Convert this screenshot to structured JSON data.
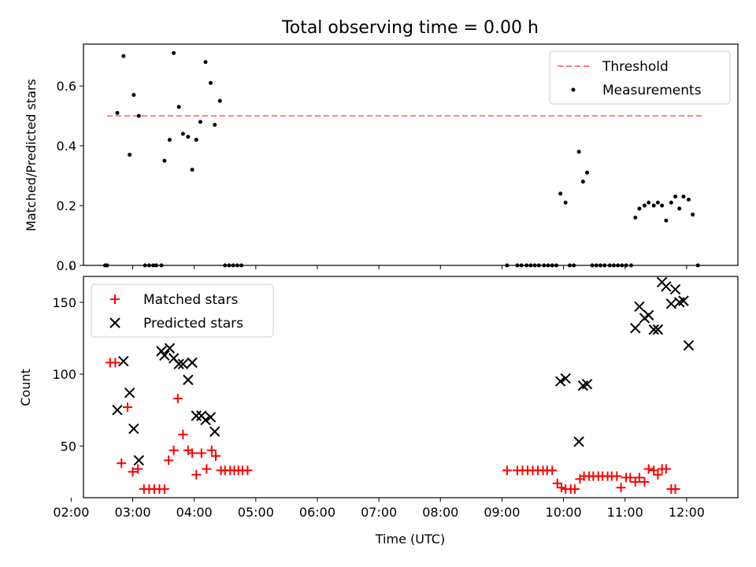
{
  "chart_data": [
    {
      "type": "scatter",
      "title": "Total observing time = 0.00 h",
      "ylabel": "Matched/Predicted stars",
      "xlabel": "",
      "xlim": [
        "02:12",
        "12:50"
      ],
      "ylim": [
        0,
        0.74
      ],
      "yticks": [
        0.0,
        0.2,
        0.4,
        0.6
      ],
      "ytick_labels": [
        "0.0",
        "0.2",
        "0.4",
        "0.6"
      ],
      "legend_position": "upper right",
      "threshold": {
        "name": "Threshold",
        "value": 0.5,
        "x_start": "02:35",
        "x_end": "12:15",
        "color": "#ff7f7f",
        "style": "dashed"
      },
      "series": [
        {
          "name": "Measurements",
          "color": "#000000",
          "marker": "dot",
          "points": [
            [
              "02:33",
              0.0
            ],
            [
              "02:35",
              0.0
            ],
            [
              "02:45",
              0.51
            ],
            [
              "02:51",
              0.7
            ],
            [
              "02:57",
              0.37
            ],
            [
              "03:01",
              0.57
            ],
            [
              "03:06",
              0.5
            ],
            [
              "03:12",
              0.0
            ],
            [
              "03:16",
              0.0
            ],
            [
              "03:20",
              0.0
            ],
            [
              "03:23",
              0.0
            ],
            [
              "03:28",
              0.0
            ],
            [
              "03:31",
              0.35
            ],
            [
              "03:36",
              0.42
            ],
            [
              "03:40",
              0.71
            ],
            [
              "03:45",
              0.53
            ],
            [
              "03:49",
              0.44
            ],
            [
              "03:54",
              0.43
            ],
            [
              "03:58",
              0.32
            ],
            [
              "04:02",
              0.42
            ],
            [
              "04:06",
              0.48
            ],
            [
              "04:11",
              0.68
            ],
            [
              "04:16",
              0.61
            ],
            [
              "04:20",
              0.47
            ],
            [
              "04:25",
              0.55
            ],
            [
              "04:30",
              0.0
            ],
            [
              "04:34",
              0.0
            ],
            [
              "04:38",
              0.0
            ],
            [
              "04:42",
              0.0
            ],
            [
              "04:46",
              0.0
            ],
            [
              "09:05",
              0.0
            ],
            [
              "09:15",
              0.0
            ],
            [
              "09:19",
              0.0
            ],
            [
              "09:24",
              0.0
            ],
            [
              "09:28",
              0.0
            ],
            [
              "09:32",
              0.0
            ],
            [
              "09:36",
              0.0
            ],
            [
              "09:41",
              0.0
            ],
            [
              "09:45",
              0.0
            ],
            [
              "09:49",
              0.0
            ],
            [
              "09:53",
              0.0
            ],
            [
              "09:57",
              0.24
            ],
            [
              "10:02",
              0.21
            ],
            [
              "10:06",
              0.0
            ],
            [
              "10:10",
              0.0
            ],
            [
              "10:15",
              0.38
            ],
            [
              "10:19",
              0.28
            ],
            [
              "10:23",
              0.31
            ],
            [
              "10:28",
              0.0
            ],
            [
              "10:32",
              0.0
            ],
            [
              "10:36",
              0.0
            ],
            [
              "10:40",
              0.0
            ],
            [
              "10:45",
              0.0
            ],
            [
              "10:49",
              0.0
            ],
            [
              "10:53",
              0.0
            ],
            [
              "10:57",
              0.0
            ],
            [
              "11:01",
              0.0
            ],
            [
              "11:06",
              0.0
            ],
            [
              "11:10",
              0.16
            ],
            [
              "11:14",
              0.19
            ],
            [
              "11:19",
              0.2
            ],
            [
              "11:23",
              0.21
            ],
            [
              "11:28",
              0.2
            ],
            [
              "11:32",
              0.21
            ],
            [
              "11:36",
              0.2
            ],
            [
              "11:40",
              0.15
            ],
            [
              "11:45",
              0.21
            ],
            [
              "11:49",
              0.23
            ],
            [
              "11:53",
              0.19
            ],
            [
              "11:57",
              0.23
            ],
            [
              "12:02",
              0.22
            ],
            [
              "12:06",
              0.17
            ],
            [
              "12:11",
              0.0
            ]
          ]
        }
      ]
    },
    {
      "type": "scatter",
      "title": "",
      "ylabel": "Count",
      "xlabel": "Time (UTC)",
      "xlim": [
        "02:12",
        "12:50"
      ],
      "ylim": [
        14,
        168
      ],
      "yticks": [
        50,
        100,
        150
      ],
      "ytick_labels": [
        "50",
        "100",
        "150"
      ],
      "xticks": [
        "02:00",
        "03:00",
        "04:00",
        "05:00",
        "06:00",
        "07:00",
        "08:00",
        "09:00",
        "10:00",
        "11:00",
        "12:00"
      ],
      "xtick_labels": [
        "02:00",
        "03:00",
        "04:00",
        "05:00",
        "06:00",
        "07:00",
        "08:00",
        "09:00",
        "10:00",
        "11:00",
        "12:00"
      ],
      "legend_position": "upper left",
      "series": [
        {
          "name": "Matched stars",
          "color": "#ff0000",
          "marker": "plus",
          "points": [
            [
              "02:38",
              108
            ],
            [
              "02:43",
              108
            ],
            [
              "02:49",
              38
            ],
            [
              "02:55",
              77
            ],
            [
              "03:00",
              32
            ],
            [
              "03:05",
              34
            ],
            [
              "03:11",
              20
            ],
            [
              "03:16",
              20
            ],
            [
              "03:21",
              20
            ],
            [
              "03:26",
              20
            ],
            [
              "03:31",
              20
            ],
            [
              "03:35",
              40
            ],
            [
              "03:40",
              47
            ],
            [
              "03:44",
              83
            ],
            [
              "03:49",
              58
            ],
            [
              "03:54",
              47
            ],
            [
              "03:58",
              45
            ],
            [
              "04:02",
              30
            ],
            [
              "04:07",
              45
            ],
            [
              "04:12",
              34
            ],
            [
              "04:17",
              47
            ],
            [
              "04:21",
              43
            ],
            [
              "04:26",
              33
            ],
            [
              "04:30",
              33
            ],
            [
              "04:35",
              33
            ],
            [
              "04:39",
              33
            ],
            [
              "04:43",
              33
            ],
            [
              "04:47",
              33
            ],
            [
              "04:52",
              33
            ],
            [
              "09:05",
              33
            ],
            [
              "09:15",
              33
            ],
            [
              "09:20",
              33
            ],
            [
              "09:25",
              33
            ],
            [
              "09:30",
              33
            ],
            [
              "09:35",
              33
            ],
            [
              "09:40",
              33
            ],
            [
              "09:44",
              33
            ],
            [
              "09:49",
              33
            ],
            [
              "09:54",
              24
            ],
            [
              "09:58",
              21
            ],
            [
              "10:02",
              20
            ],
            [
              "10:07",
              20
            ],
            [
              "10:11",
              20
            ],
            [
              "10:16",
              27
            ],
            [
              "10:20",
              29
            ],
            [
              "10:25",
              29
            ],
            [
              "10:29",
              29
            ],
            [
              "10:34",
              29
            ],
            [
              "10:38",
              29
            ],
            [
              "10:43",
              29
            ],
            [
              "10:47",
              29
            ],
            [
              "10:52",
              29
            ],
            [
              "10:56",
              21
            ],
            [
              "11:01",
              28
            ],
            [
              "11:05",
              28
            ],
            [
              "11:10",
              25
            ],
            [
              "11:14",
              28
            ],
            [
              "11:19",
              25
            ],
            [
              "11:23",
              34
            ],
            [
              "11:28",
              33
            ],
            [
              "11:32",
              30
            ],
            [
              "11:36",
              34
            ],
            [
              "11:40",
              34
            ],
            [
              "11:45",
              20
            ],
            [
              "11:49",
              20
            ]
          ]
        },
        {
          "name": "Predicted stars",
          "color": "#000000",
          "marker": "x",
          "points": [
            [
              "02:45",
              75
            ],
            [
              "02:51",
              109
            ],
            [
              "02:57",
              87
            ],
            [
              "03:01",
              62
            ],
            [
              "03:06",
              40
            ],
            [
              "03:28",
              116
            ],
            [
              "03:31",
              113
            ],
            [
              "03:36",
              118
            ],
            [
              "03:40",
              111
            ],
            [
              "03:45",
              107
            ],
            [
              "03:49",
              107
            ],
            [
              "03:54",
              96
            ],
            [
              "03:58",
              108
            ],
            [
              "04:02",
              71
            ],
            [
              "04:07",
              71
            ],
            [
              "04:11",
              68
            ],
            [
              "04:16",
              70
            ],
            [
              "04:20",
              60
            ],
            [
              "09:57",
              95
            ],
            [
              "10:02",
              97
            ],
            [
              "10:15",
              53
            ],
            [
              "10:19",
              92
            ],
            [
              "10:23",
              93
            ],
            [
              "11:10",
              132
            ],
            [
              "11:14",
              147
            ],
            [
              "11:19",
              139
            ],
            [
              "11:23",
              141
            ],
            [
              "11:28",
              131
            ],
            [
              "11:32",
              131
            ],
            [
              "11:36",
              164
            ],
            [
              "11:40",
              161
            ],
            [
              "11:45",
              149
            ],
            [
              "11:49",
              159
            ],
            [
              "11:53",
              150
            ],
            [
              "11:57",
              151
            ],
            [
              "12:02",
              120
            ]
          ]
        }
      ]
    }
  ]
}
